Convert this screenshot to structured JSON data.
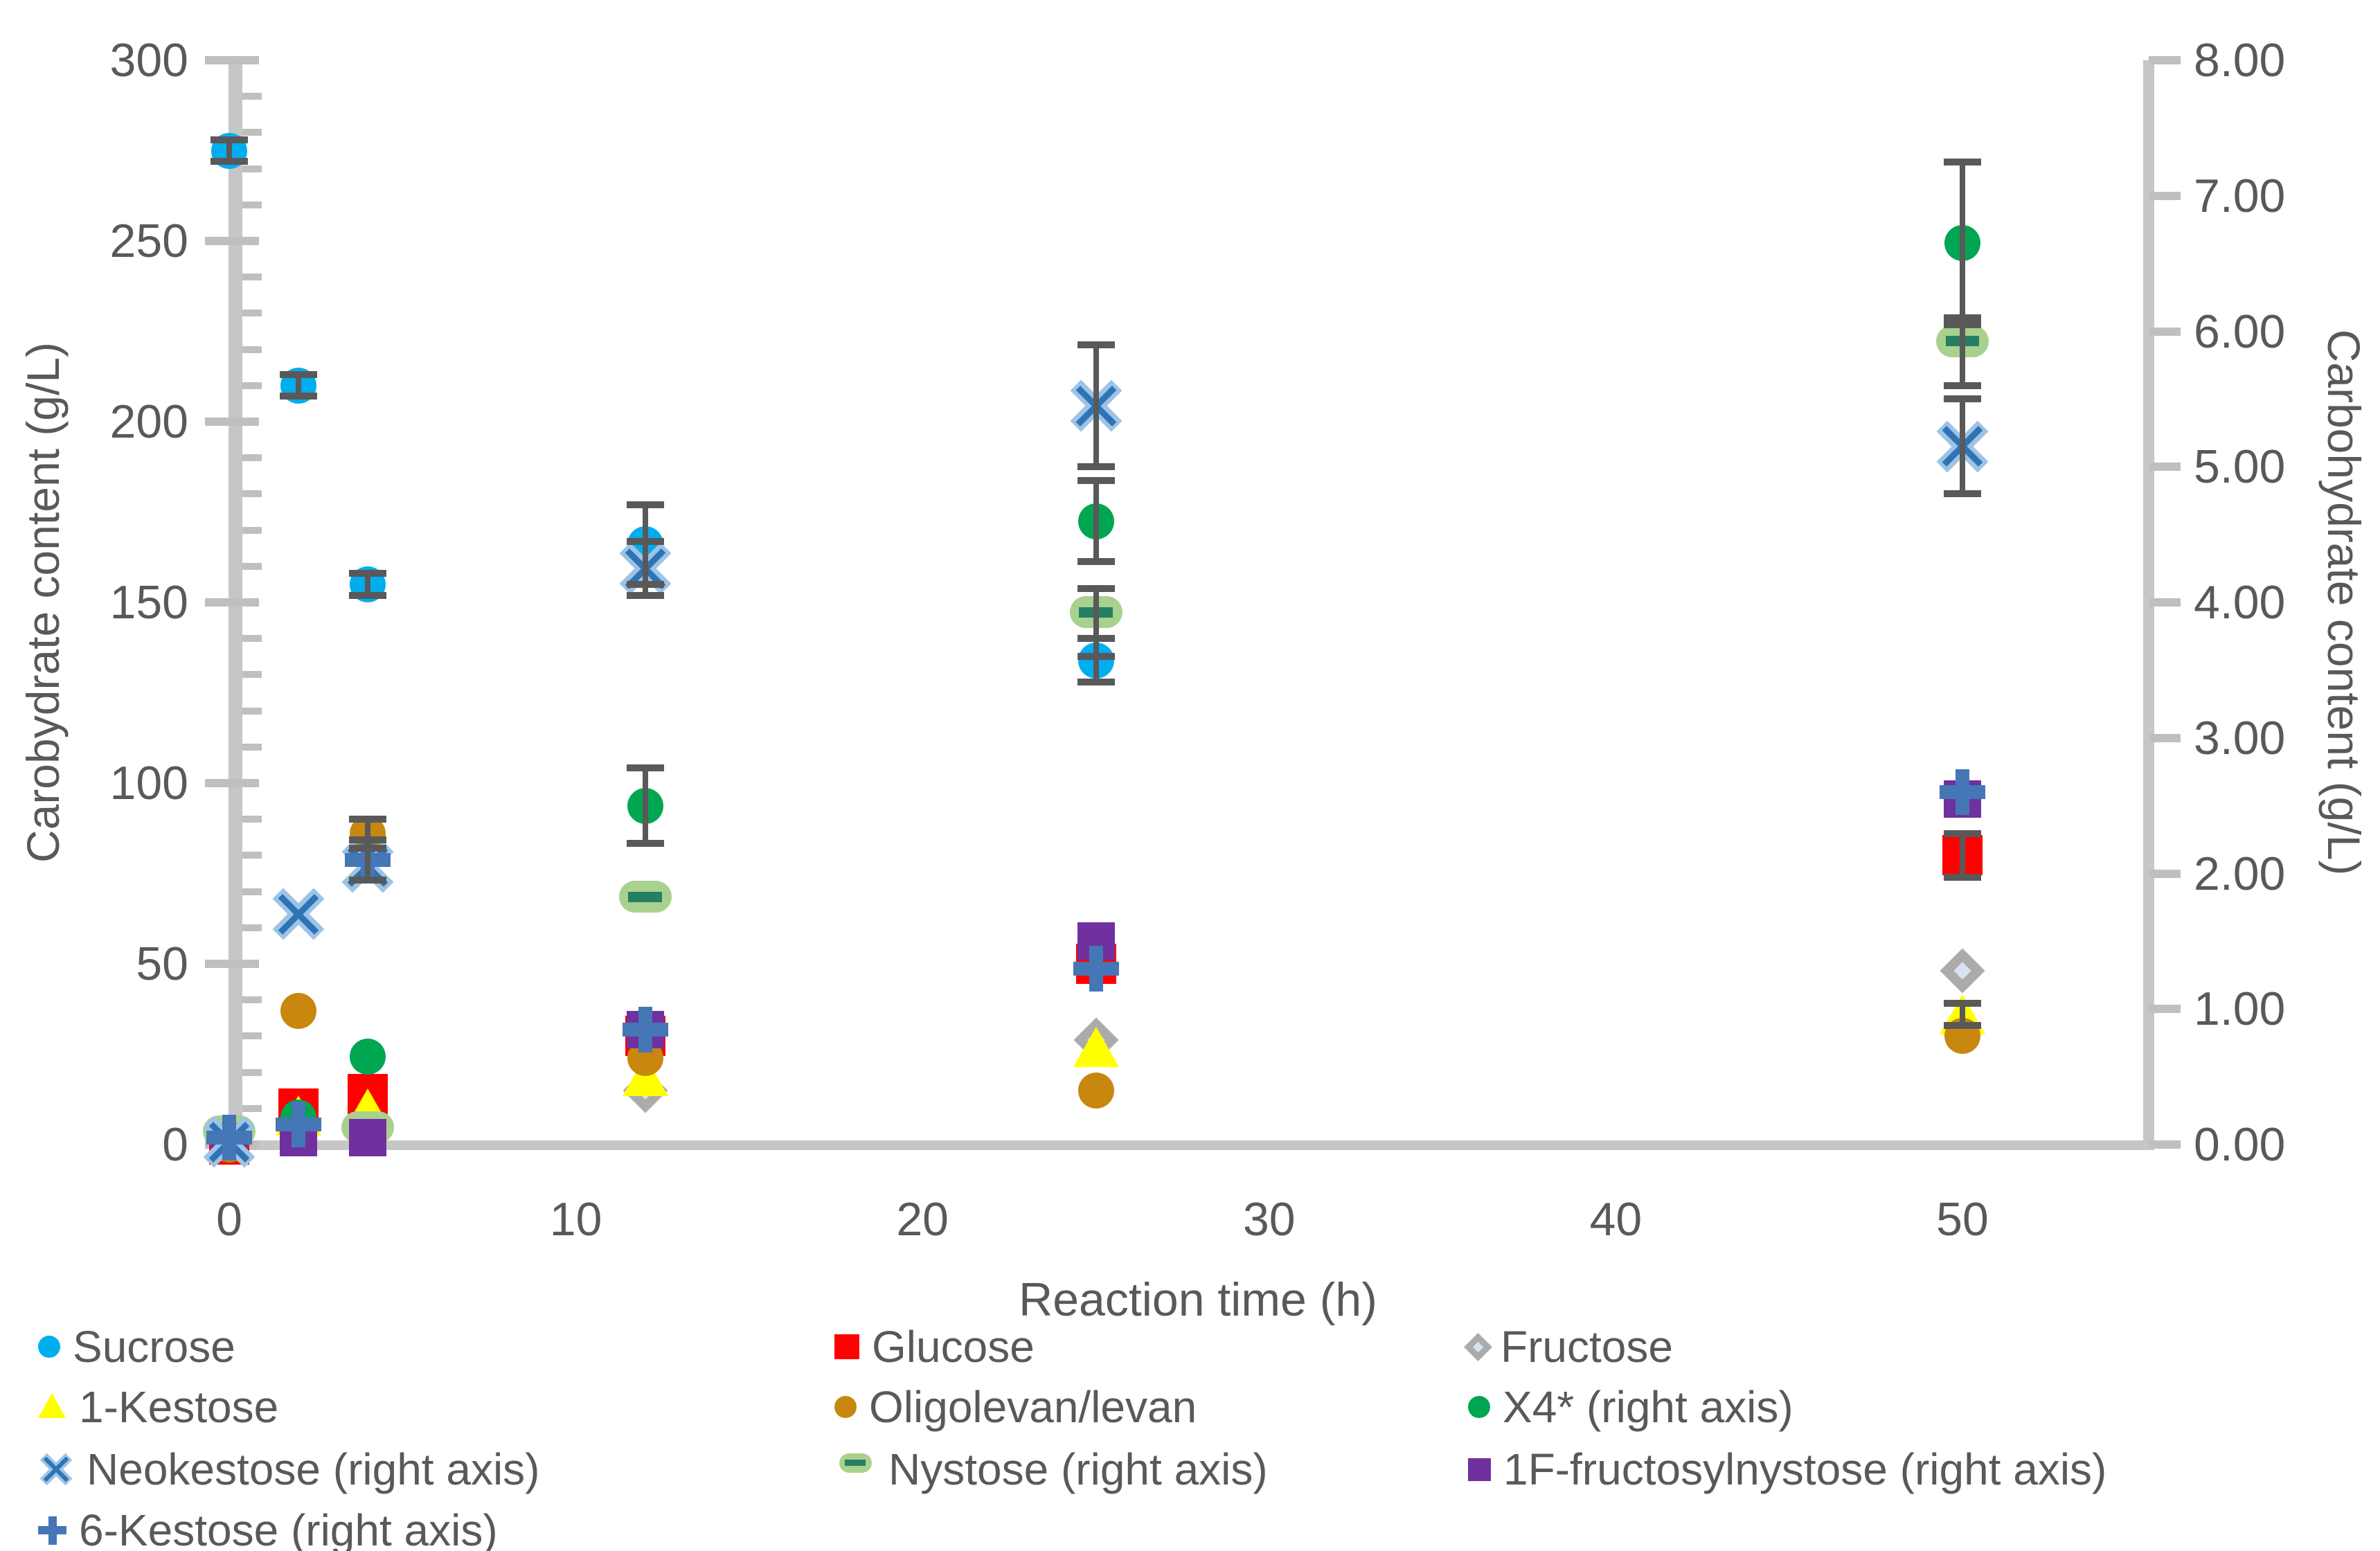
{
  "figure": {
    "x_axis_title": "Reaction time (h)",
    "y_left_title": "Carobydrate content (g/L)",
    "y_right_title": "Carbohydrate content (g/L)",
    "colors": {
      "text": "#595959",
      "axis": "#c6c6c6",
      "error_bar": "#595959"
    }
  },
  "chart_data": {
    "type": "scatter",
    "title": "",
    "xlabel": "Reaction time (h)",
    "ylabel_left": "Carobydrate content (g/L)",
    "ylabel_right": "Carbohydrate content (g/L)",
    "xlim": [
      0,
      55
    ],
    "ylim_left": [
      0,
      300
    ],
    "ylim_right": [
      0,
      8
    ],
    "x_ticks": [
      "0",
      "10",
      "20",
      "30",
      "40",
      "50"
    ],
    "y_left_ticks": [
      "0",
      "50",
      "100",
      "150",
      "200",
      "250",
      "300"
    ],
    "y_left_minor_step": 10,
    "y_right_ticks": [
      "0.00",
      "1.00",
      "2.00",
      "3.00",
      "4.00",
      "5.00",
      "6.00",
      "7.00",
      "8.00"
    ],
    "grid": false,
    "legend_position": "bottom",
    "series": [
      {
        "name": "Sucrose",
        "axis": "left",
        "marker": "circle",
        "color": "#00AEEF",
        "color2": null,
        "size": 52,
        "z": 8,
        "points": [
          [
            0,
            275,
            3
          ],
          [
            2,
            210,
            3
          ],
          [
            4,
            155,
            3
          ],
          [
            12,
            166,
            11
          ],
          [
            25,
            134,
            6
          ]
        ]
      },
      {
        "name": "Glucose",
        "axis": "left",
        "marker": "square",
        "color": "#FF0000",
        "color2": null,
        "size": 58,
        "z": 2,
        "points": [
          [
            0,
            0,
            null
          ],
          [
            2,
            10,
            null
          ],
          [
            4,
            14,
            null
          ],
          [
            12,
            30,
            null
          ],
          [
            25,
            50,
            null
          ],
          [
            50,
            80,
            6
          ]
        ]
      },
      {
        "name": "Fructose",
        "axis": "left",
        "marker": "diamond",
        "color": "#ABABAB",
        "color2": "#D9E2F3",
        "size": 46,
        "z": 1,
        "points": [
          [
            12,
            15,
            null
          ],
          [
            25,
            29,
            null
          ],
          [
            50,
            48,
            null
          ]
        ]
      },
      {
        "name": "1-Kestose",
        "axis": "left",
        "marker": "triangle",
        "color": "#FFFF00",
        "color2": null,
        "size": 66,
        "z": 3,
        "points": [
          [
            0,
            1,
            null
          ],
          [
            2,
            8,
            null
          ],
          [
            4,
            10,
            null
          ],
          [
            12,
            19,
            null
          ],
          [
            25,
            27,
            null
          ],
          [
            50,
            36,
            3
          ]
        ]
      },
      {
        "name": "Oligolevan/levan",
        "axis": "left",
        "marker": "circle",
        "color": "#C8870E",
        "color2": null,
        "size": 52,
        "z": 4,
        "points": [
          [
            0,
            0,
            null
          ],
          [
            2,
            37,
            null
          ],
          [
            4,
            86,
            4
          ],
          [
            12,
            24,
            null
          ],
          [
            25,
            15,
            null
          ],
          [
            50,
            30,
            null
          ]
        ]
      },
      {
        "name": "X4* (right axis)",
        "axis": "right",
        "marker": "circle",
        "color": "#00A651",
        "color2": null,
        "size": 52,
        "z": 5,
        "points": [
          [
            0,
            0.02,
            null
          ],
          [
            2,
            0.2,
            null
          ],
          [
            4,
            0.65,
            null
          ],
          [
            12,
            2.5,
            0.28
          ],
          [
            25,
            4.6,
            0.3
          ],
          [
            50,
            6.65,
            0.6
          ]
        ]
      },
      {
        "name": "Neokestose (right axis)",
        "axis": "right",
        "marker": "x",
        "color": "#9DC3E6",
        "color2": "#2E74B5",
        "size": 66,
        "z": 9,
        "points": [
          [
            0,
            0.02,
            null
          ],
          [
            2,
            1.7,
            null
          ],
          [
            4,
            2.05,
            null
          ],
          [
            12,
            4.25,
            0.2
          ],
          [
            25,
            5.45,
            0.45
          ],
          [
            50,
            5.15,
            0.35
          ]
        ]
      },
      {
        "name": "Nystose (right axis)",
        "axis": "right",
        "marker": "dash",
        "color": "#A9D18E",
        "color2": "#267E63",
        "size": 76,
        "z": 6,
        "points": [
          [
            0,
            0.02,
            null
          ],
          [
            4,
            0.05,
            null
          ],
          [
            12,
            1.75,
            null
          ],
          [
            25,
            3.85,
            0.25
          ],
          [
            50,
            5.85,
            0.25
          ]
        ]
      },
      {
        "name": "1F-fructosylnystose (right axis)",
        "axis": "right",
        "marker": "square",
        "color": "#7030A0",
        "color2": null,
        "size": 54,
        "z": 7,
        "points": [
          [
            0,
            0.02,
            null
          ],
          [
            2,
            0.05,
            null
          ],
          [
            4,
            0.05,
            null
          ],
          [
            12,
            0.85,
            null
          ],
          [
            25,
            1.5,
            null
          ],
          [
            50,
            2.55,
            null
          ]
        ]
      },
      {
        "name": "6-Kestose (right axis)",
        "axis": "right",
        "marker": "plus",
        "color": "#4576B5",
        "color2": null,
        "size": 66,
        "z": 10,
        "points": [
          [
            0,
            0.05,
            null
          ],
          [
            2,
            0.15,
            null
          ],
          [
            4,
            2.1,
            0.15
          ],
          [
            12,
            0.85,
            null
          ],
          [
            25,
            1.3,
            null
          ],
          [
            50,
            2.6,
            null
          ]
        ]
      }
    ]
  },
  "legend": {
    "items": [
      {
        "label": "Sucrose",
        "series": 0,
        "col": 0,
        "row": 0
      },
      {
        "label": "Glucose",
        "series": 1,
        "col": 1,
        "row": 0
      },
      {
        "label": "Fructose",
        "series": 2,
        "col": 2,
        "row": 0
      },
      {
        "label": "1-Kestose",
        "series": 3,
        "col": 0,
        "row": 1
      },
      {
        "label": "Oligolevan/levan",
        "series": 4,
        "col": 1,
        "row": 1
      },
      {
        "label": "X4* (right axis)",
        "series": 5,
        "col": 2,
        "row": 1
      },
      {
        "label": "Neokestose (right axis)",
        "series": 6,
        "col": 0,
        "row": 2
      },
      {
        "label": "Nystose (right axis)",
        "series": 7,
        "col": 1,
        "row": 2
      },
      {
        "label": "1F-fructosylnystose (right axis)",
        "series": 8,
        "col": 2,
        "row": 2
      },
      {
        "label": "6-Kestose (right axis)",
        "series": 9,
        "col": 0,
        "row": 3
      }
    ]
  }
}
